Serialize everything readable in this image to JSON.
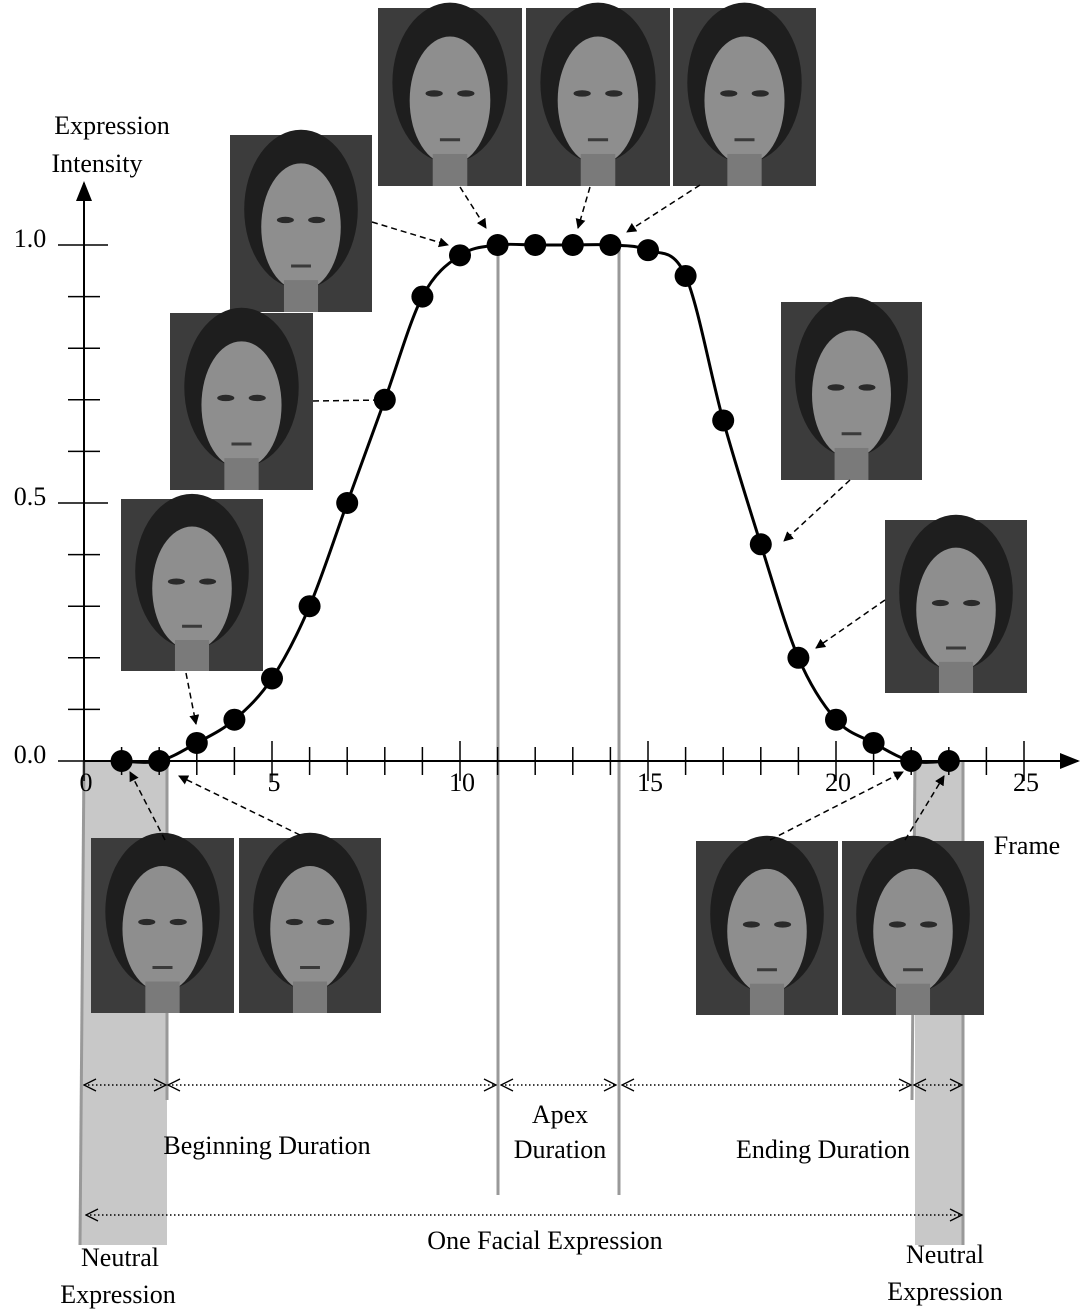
{
  "chart_data": {
    "type": "line",
    "x_label": "Frame",
    "y_label": [
      "Expression",
      "Intensity"
    ],
    "x": [
      1,
      2,
      3,
      4,
      5,
      6,
      7,
      8,
      9,
      10,
      11,
      12,
      13,
      14,
      15,
      16,
      17,
      18,
      19,
      20,
      21,
      22,
      23
    ],
    "series": [
      {
        "color": "#000000",
        "values": [
          0,
          0,
          0.035,
          0.08,
          0.16,
          0.3,
          0.5,
          0.7,
          0.9,
          0.98,
          1,
          1,
          1,
          1,
          0.99,
          0.94,
          0.66,
          0.42,
          0.2,
          0.08,
          0.035,
          0,
          0
        ]
      }
    ],
    "xlim": [
      0,
      26.4
    ],
    "ylim": [
      0,
      1.12
    ],
    "xticks": [
      0,
      5,
      10,
      15,
      20,
      25
    ],
    "xminorticks": [
      1,
      2,
      3,
      4,
      6,
      7,
      8,
      9,
      11,
      12,
      13,
      14,
      16,
      17,
      18,
      19,
      21,
      22,
      23,
      24
    ],
    "yticks": [
      {
        "value": 0,
        "label": "0.0"
      },
      0.5,
      {
        "value": 1,
        "label": "1.0"
      }
    ],
    "yminorticks": [
      0.1,
      0.2,
      0.3,
      0.4,
      0.6,
      0.7,
      0.8,
      0.9
    ],
    "annotations": {
      "beginning": "Beginning Duration",
      "apex": [
        "Apex",
        "Duration"
      ],
      "ending": "Ending Duration",
      "total": "One Facial Expression",
      "neutral_start": [
        "Neutral",
        "Expression"
      ],
      "neutral_end": [
        "Neutral",
        "Expression"
      ]
    }
  }
}
